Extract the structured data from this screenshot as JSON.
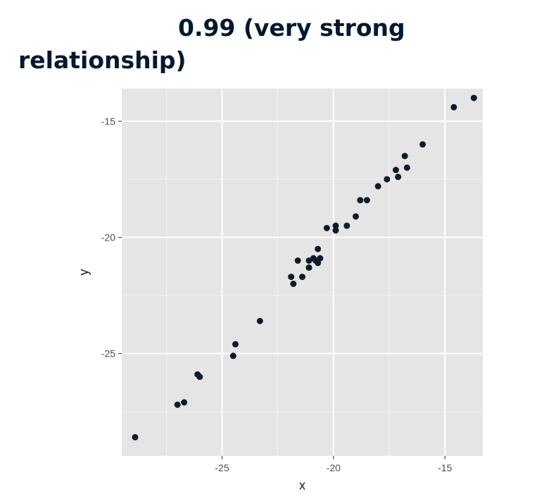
{
  "title": {
    "line1": "0.99 (very strong",
    "line2": "relationship)"
  },
  "chart_data": {
    "type": "scatter",
    "xlabel": "x",
    "ylabel": "y",
    "xlim": [
      -29.5,
      -13.3
    ],
    "ylim": [
      -29.4,
      -13.6
    ],
    "x_ticks": [
      -25,
      -20,
      -15
    ],
    "y_ticks": [
      -15,
      -20,
      -25
    ],
    "x_tick_labels": [
      "-25",
      "-20",
      "-15"
    ],
    "y_tick_labels": [
      "-15",
      "-20",
      "-25"
    ],
    "grid": true,
    "background": "#e5e5e5",
    "point_color": "#0d1b2a",
    "points": [
      {
        "x": -28.9,
        "y": -28.6
      },
      {
        "x": -27.0,
        "y": -27.2
      },
      {
        "x": -26.7,
        "y": -27.1
      },
      {
        "x": -26.1,
        "y": -25.9
      },
      {
        "x": -26.0,
        "y": -26.0
      },
      {
        "x": -24.5,
        "y": -25.1
      },
      {
        "x": -24.4,
        "y": -24.6
      },
      {
        "x": -23.3,
        "y": -23.6
      },
      {
        "x": -21.9,
        "y": -21.7
      },
      {
        "x": -21.8,
        "y": -22.0
      },
      {
        "x": -21.6,
        "y": -21.0
      },
      {
        "x": -21.4,
        "y": -21.7
      },
      {
        "x": -21.1,
        "y": -21.0
      },
      {
        "x": -21.1,
        "y": -21.3
      },
      {
        "x": -20.9,
        "y": -20.9
      },
      {
        "x": -20.8,
        "y": -21.0
      },
      {
        "x": -20.7,
        "y": -20.5
      },
      {
        "x": -20.7,
        "y": -21.1
      },
      {
        "x": -20.6,
        "y": -20.9
      },
      {
        "x": -20.3,
        "y": -19.6
      },
      {
        "x": -19.9,
        "y": -19.5
      },
      {
        "x": -19.9,
        "y": -19.7
      },
      {
        "x": -19.4,
        "y": -19.5
      },
      {
        "x": -19.0,
        "y": -19.1
      },
      {
        "x": -18.8,
        "y": -18.4
      },
      {
        "x": -18.5,
        "y": -18.4
      },
      {
        "x": -18.0,
        "y": -17.8
      },
      {
        "x": -17.6,
        "y": -17.5
      },
      {
        "x": -17.2,
        "y": -17.1
      },
      {
        "x": -17.1,
        "y": -17.4
      },
      {
        "x": -16.8,
        "y": -16.5
      },
      {
        "x": -16.7,
        "y": -17.0
      },
      {
        "x": -16.0,
        "y": -16.0
      },
      {
        "x": -14.6,
        "y": -14.4
      },
      {
        "x": -13.7,
        "y": -14.0
      }
    ]
  }
}
